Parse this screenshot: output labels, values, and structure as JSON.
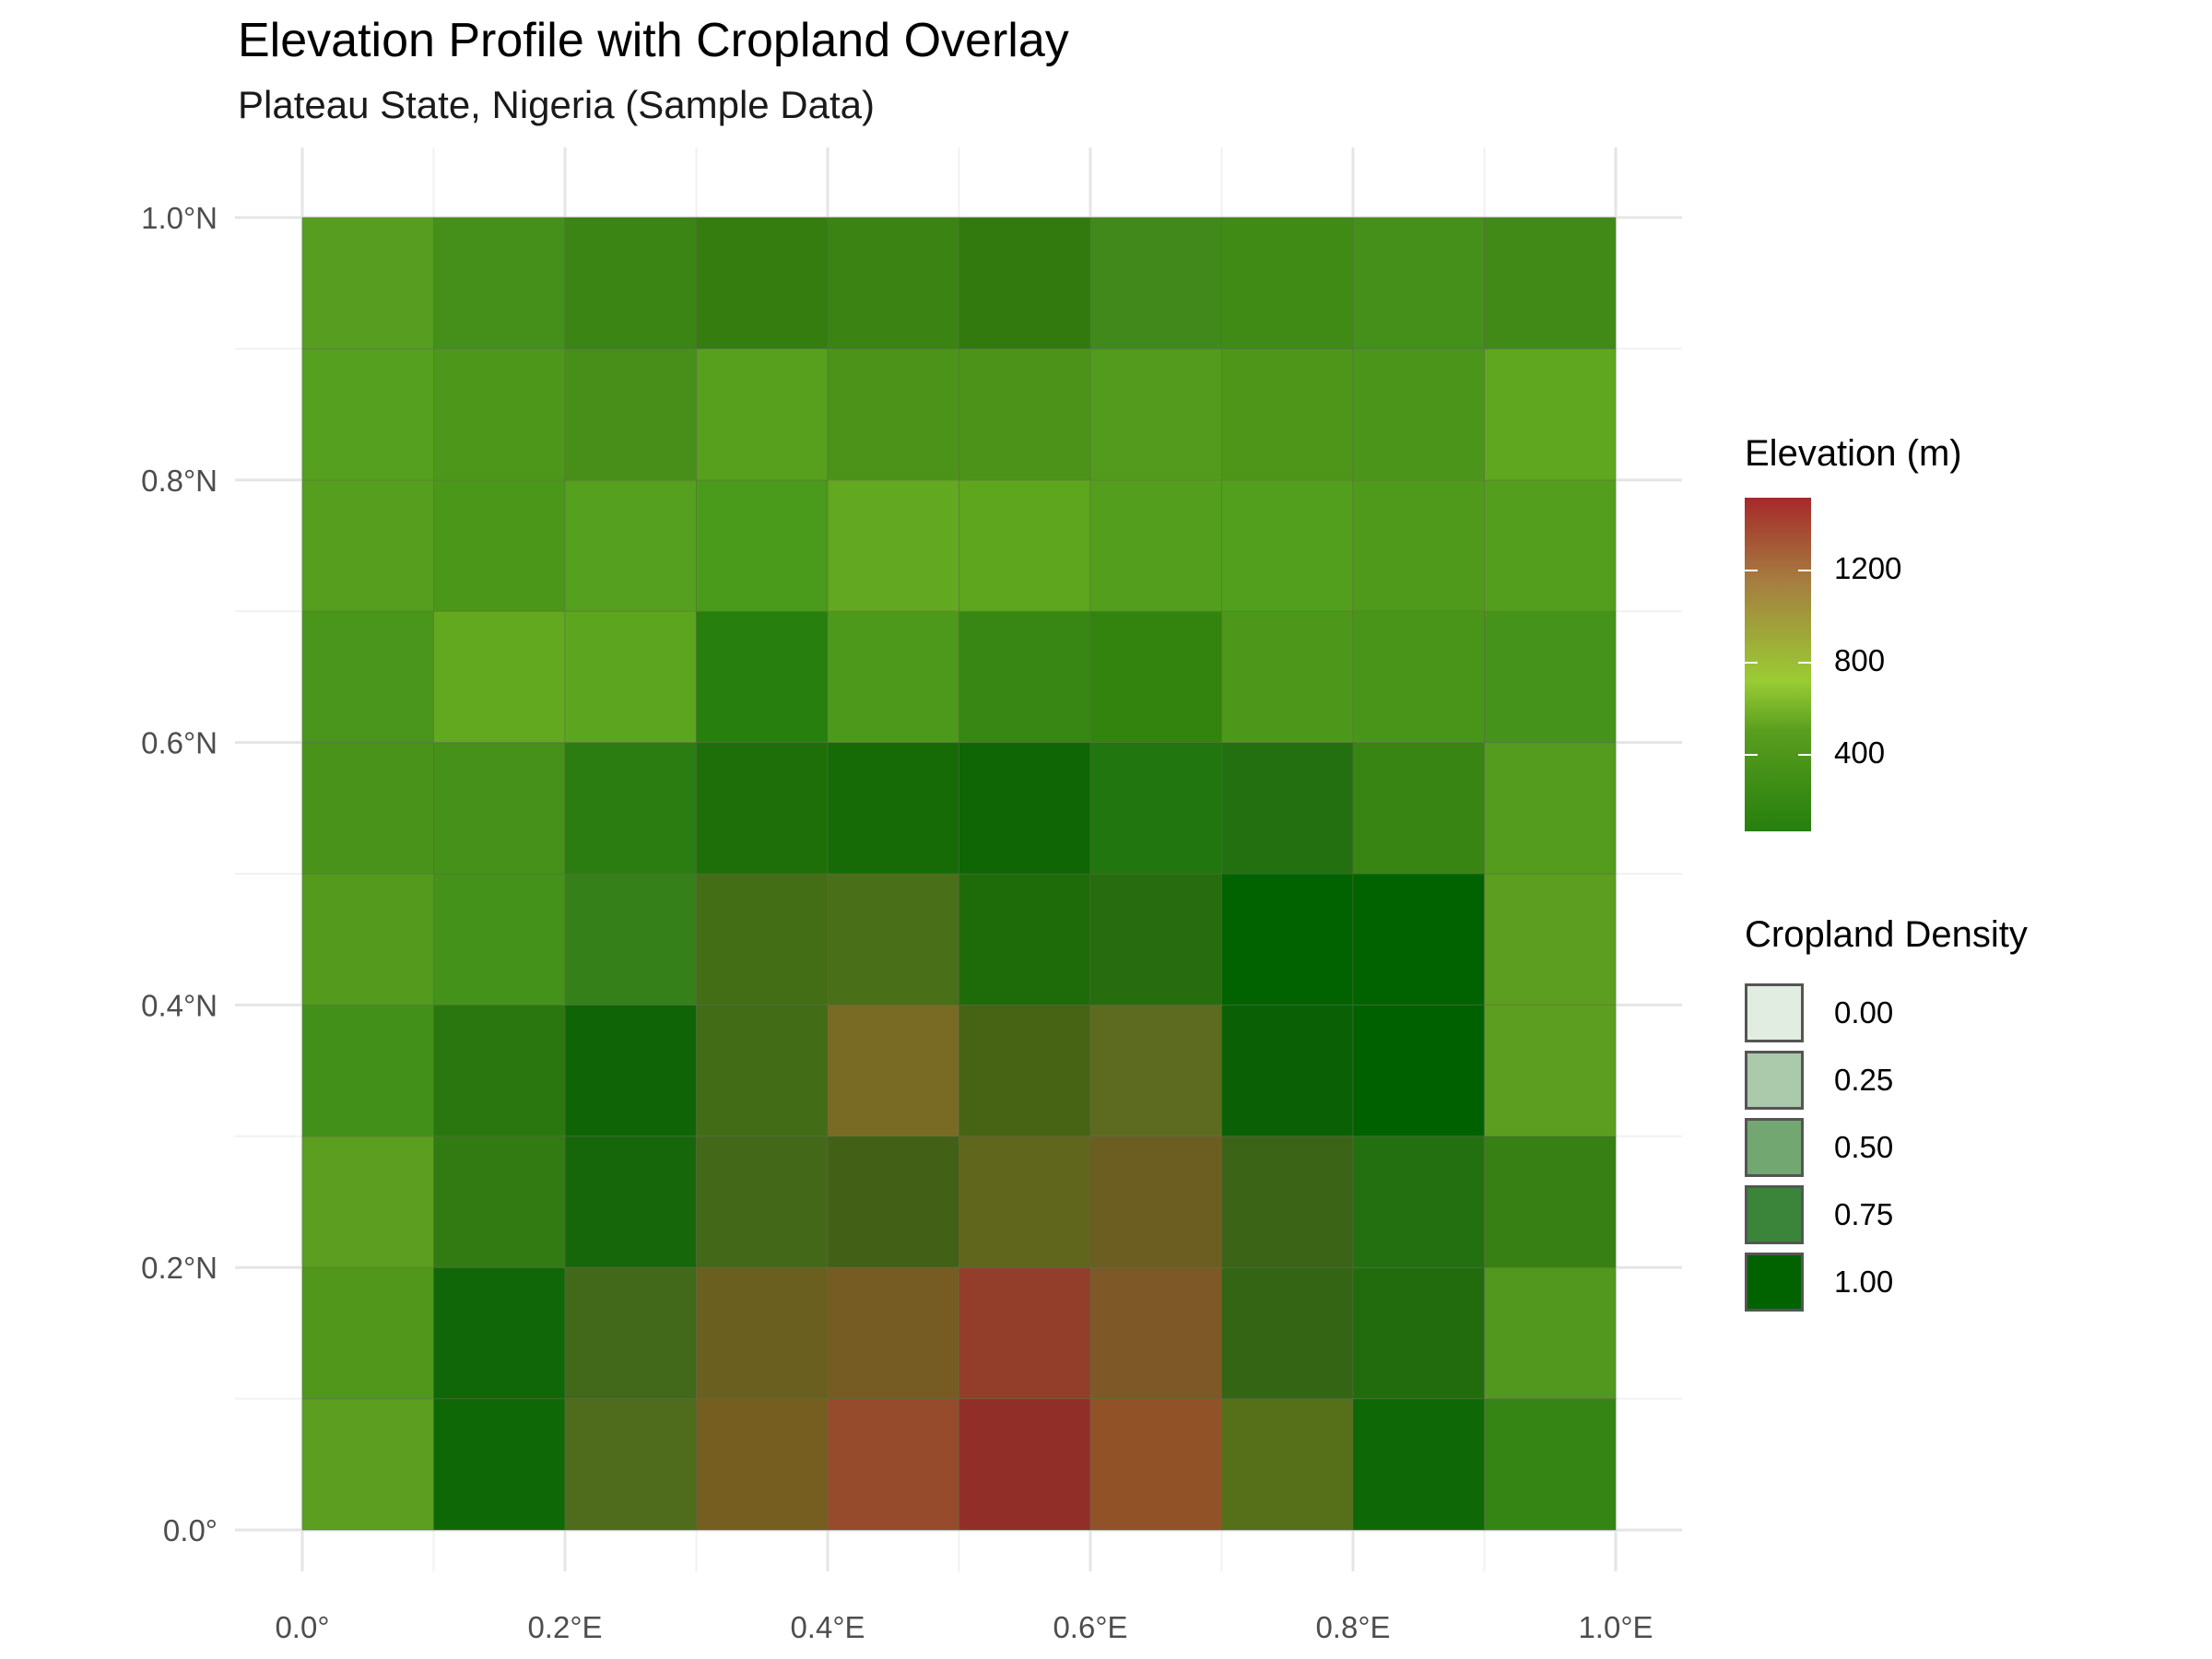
{
  "chart_data": {
    "type": "heatmap",
    "title": "Elevation Profile with Cropland Overlay",
    "subtitle": "Plateau State, Nigeria (Sample Data)",
    "x_ticks": [
      "0.0°",
      "0.2°E",
      "0.4°E",
      "0.6°E",
      "0.8°E",
      "1.0°E"
    ],
    "y_ticks": [
      "0.0°",
      "0.2°N",
      "0.4°N",
      "0.6°N",
      "0.8°N",
      "1.0°N"
    ],
    "xlim": [
      0,
      1
    ],
    "ylim": [
      0,
      1
    ],
    "grid": true,
    "cell_size": 0.1,
    "x_centers": [
      0.05,
      0.15,
      0.25,
      0.35,
      0.45,
      0.55,
      0.65,
      0.75,
      0.85,
      0.95
    ],
    "y_centers": [
      0.05,
      0.15,
      0.25,
      0.35,
      0.45,
      0.55,
      0.65,
      0.75,
      0.85,
      0.95
    ],
    "cell_colors": [
      [
        "#5c9e1f",
        "#0e6806",
        "#4f6b1c",
        "#765e21",
        "#974b2d",
        "#922e28",
        "#925228",
        "#567019",
        "#0e6806",
        "#358514"
      ],
      [
        "#50971b",
        "#0f6707",
        "#42681a",
        "#6a5f1f",
        "#765c22",
        "#923e2a",
        "#7e5827",
        "#336515",
        "#226c0e",
        "#52981f"
      ],
      [
        "#5b9e20",
        "#327b12",
        "#16670a",
        "#436818",
        "#436116",
        "#60661c",
        "#6c5d21",
        "#3c6417",
        "#22700f",
        "#368014"
      ],
      [
        "#42901a",
        "#2a770f",
        "#0f6506",
        "#426c16",
        "#7a6b24",
        "#476314",
        "#5c6b1f",
        "#0a6105",
        "#006100",
        "#5b9e20"
      ],
      [
        "#539a1d",
        "#45921b",
        "#36801a",
        "#446e16",
        "#4a6f19",
        "#1e6b0a",
        "#276c0e",
        "#006300",
        "#006300",
        "#5c9e20"
      ],
      [
        "#4a931b",
        "#45911a",
        "#2c7d11",
        "#1e6f09",
        "#166b06",
        "#0e6604",
        "#217610",
        "#22700f",
        "#388513",
        "#539c1e"
      ],
      [
        "#4a951b",
        "#63a920",
        "#5ba51f",
        "#277f0e",
        "#4d991c",
        "#388614",
        "#33830f",
        "#4d971b",
        "#49951a",
        "#45931a"
      ],
      [
        "#559e1e",
        "#4a971a",
        "#55a01e",
        "#4a9a1b",
        "#62a820",
        "#5ea61e",
        "#549e1d",
        "#529e1d",
        "#4f9a1b",
        "#549e1e"
      ],
      [
        "#55a01e",
        "#4d971b",
        "#478f18",
        "#56a01e",
        "#4b9319",
        "#4c9419",
        "#539b1c",
        "#4e9619",
        "#4c951b",
        "#5ea71e"
      ],
      [
        "#579e20",
        "#45901a",
        "#3a8513",
        "#357d0f",
        "#3b8414",
        "#327a0e",
        "#40891a",
        "#408a16",
        "#44901a",
        "#418a17"
      ]
    ],
    "legends": {
      "elevation": {
        "title": "Elevation (m)",
        "ticks": [
          "400",
          "800",
          "1200"
        ],
        "colors": [
          "#267f0d",
          "#99cc33",
          "#a6292a"
        ]
      },
      "cropland": {
        "title": "Cropland Density",
        "values": [
          "0.00",
          "0.25",
          "0.50",
          "0.75",
          "1.00"
        ],
        "colors": [
          "#e2ede2",
          "#abc9ab",
          "#72a772",
          "#3a853a",
          "#006300"
        ]
      }
    }
  }
}
